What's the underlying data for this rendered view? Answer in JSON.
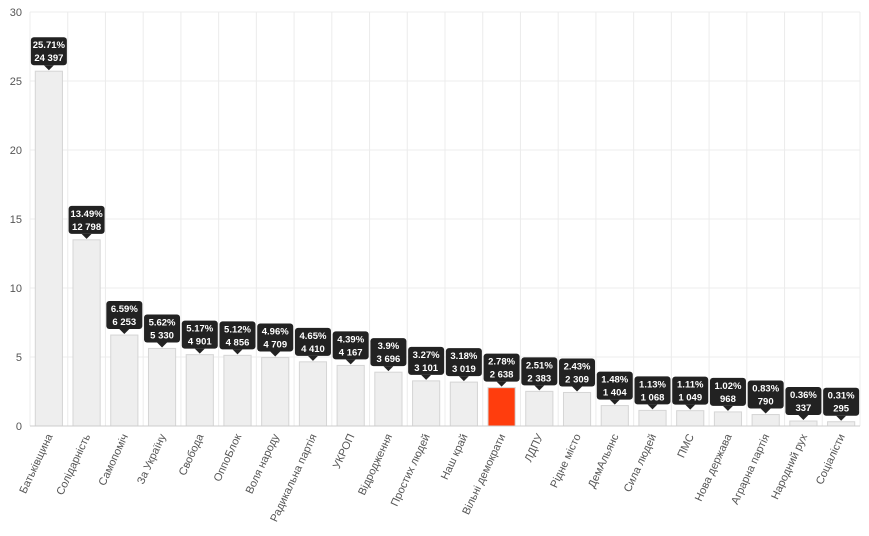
{
  "chart_data": {
    "type": "bar",
    "title": "",
    "xlabel": "",
    "ylabel": "",
    "ylim": [
      0,
      30
    ],
    "yticks": [
      0,
      5,
      10,
      15,
      20,
      25,
      30
    ],
    "grid": true,
    "bar_color": "#eeeeee",
    "highlight_color": "#ff3d0d",
    "highlight_index": 12,
    "categories": [
      "Батьківщина",
      "Солідарність",
      "Самопоміч",
      "За Україну",
      "Свобода",
      "ОппоБлок",
      "Воля народу",
      "Радикальна партія",
      "УКРОП",
      "Відродження",
      "Простих людей",
      "Наш край",
      "Вільні демократи",
      "ЛДПУ",
      "Рідне місто",
      "ДемАльянс",
      "Сила людей",
      "ПМС",
      "Нова держава",
      "Аграрна партія",
      "Народний рух",
      "Соціалісти"
    ],
    "values": [
      25.71,
      13.49,
      6.59,
      5.62,
      5.17,
      5.12,
      4.96,
      4.65,
      4.39,
      3.9,
      3.27,
      3.18,
      2.78,
      2.51,
      2.43,
      1.48,
      1.13,
      1.11,
      1.02,
      0.83,
      0.36,
      0.31
    ],
    "percent_labels": [
      "25.71%",
      "13.49%",
      "6.59%",
      "5.62%",
      "5.17%",
      "5.12%",
      "4.96%",
      "4.65%",
      "4.39%",
      "3.9%",
      "3.27%",
      "3.18%",
      "2.78%",
      "2.51%",
      "2.43%",
      "1.48%",
      "1.13%",
      "1.11%",
      "1.02%",
      "0.83%",
      "0.36%",
      "0.31%"
    ],
    "votes_labels": [
      "24 397",
      "12 798",
      "6 253",
      "5 330",
      "4 901",
      "4 856",
      "4 709",
      "4 410",
      "4 167",
      "3 696",
      "3 101",
      "3 019",
      "2 638",
      "2 383",
      "2 309",
      "1 404",
      "1 068",
      "1 049",
      "968",
      "790",
      "337",
      "295"
    ]
  }
}
